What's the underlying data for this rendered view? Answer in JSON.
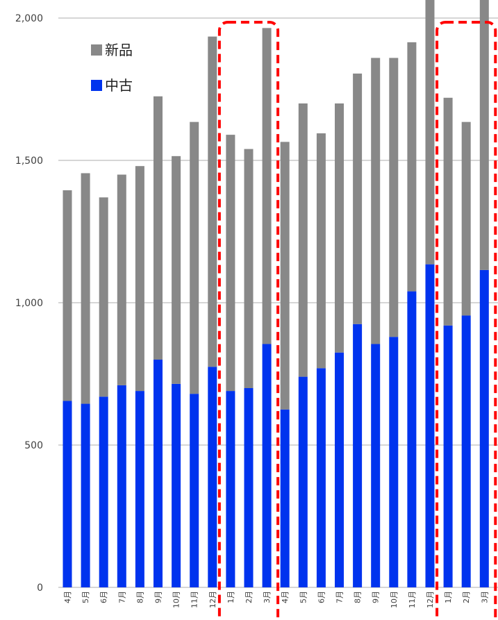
{
  "chart_data": {
    "type": "bar",
    "stacked": true,
    "categories": [
      "4月",
      "5月",
      "6月",
      "7月",
      "8月",
      "9月",
      "10月",
      "11月",
      "12月",
      "1月",
      "2月",
      "3月",
      "4月",
      "5月",
      "6月",
      "7月",
      "8月",
      "9月",
      "10月",
      "11月",
      "12月",
      "1月",
      "2月",
      "3月"
    ],
    "series": [
      {
        "name": "中古",
        "values": [
          655,
          645,
          670,
          710,
          690,
          800,
          715,
          680,
          775,
          690,
          700,
          855,
          625,
          740,
          770,
          825,
          925,
          855,
          880,
          1040,
          1135,
          920,
          955,
          1115
        ]
      },
      {
        "name": "新品",
        "values": [
          740,
          810,
          700,
          740,
          790,
          925,
          800,
          955,
          1160,
          900,
          840,
          1110,
          940,
          960,
          825,
          875,
          880,
          1005,
          980,
          875,
          1000,
          800,
          680,
          1005
        ]
      }
    ],
    "yticks": [
      "0",
      "500",
      "1,000",
      "1,500",
      "2,000"
    ],
    "ylim": [
      0,
      2050
    ],
    "grid": true,
    "legend": {
      "position": "top-left",
      "items": [
        "新品",
        "中古"
      ]
    },
    "highlight_groups": [
      [
        9,
        11
      ],
      [
        21,
        23
      ]
    ],
    "colors": {
      "中古": "#0033ee",
      "新品": "#888888",
      "grid": "#c8c8c8",
      "highlight": "#ff0000"
    }
  }
}
